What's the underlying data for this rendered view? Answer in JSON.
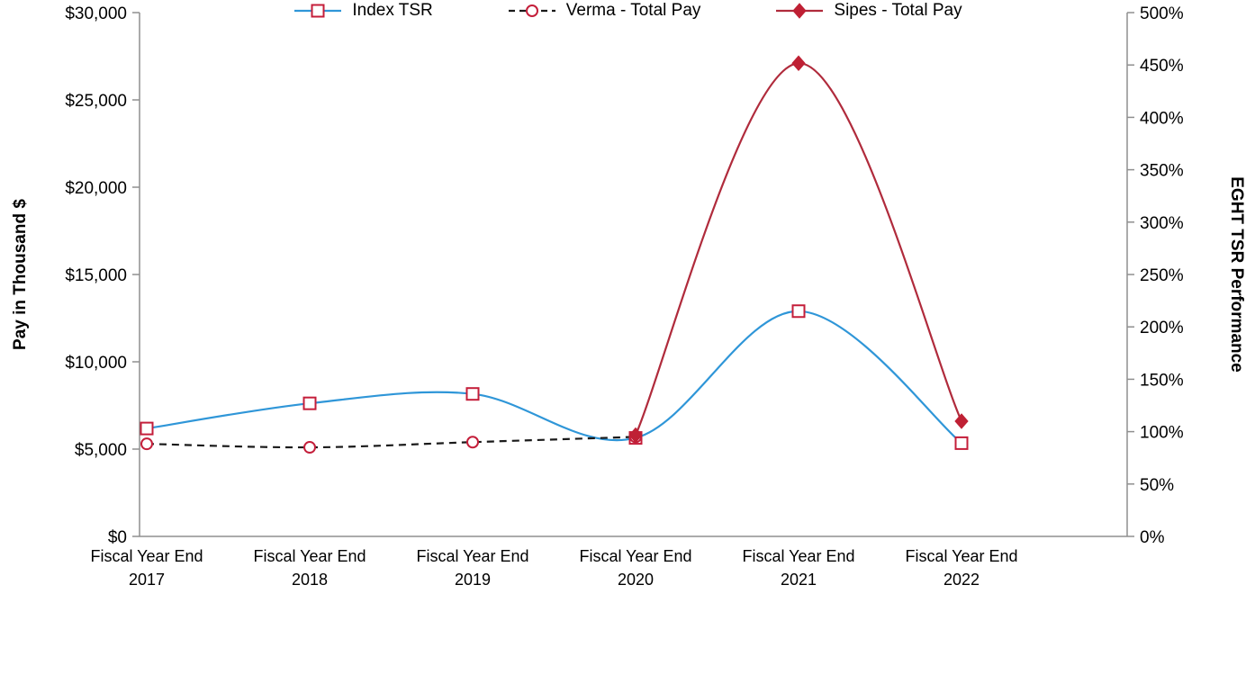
{
  "chart_data": {
    "type": "line",
    "title": "",
    "categories": [
      {
        "label": "Fiscal Year End",
        "year": "2017"
      },
      {
        "label": "Fiscal Year End",
        "year": "2018"
      },
      {
        "label": "Fiscal Year End",
        "year": "2019"
      },
      {
        "label": "Fiscal Year End",
        "year": "2020"
      },
      {
        "label": "Fiscal Year End",
        "year": "2021"
      },
      {
        "label": "Fiscal Year End",
        "year": "2022"
      }
    ],
    "left_axis": {
      "title": "Pay in Thousand $",
      "min": 0,
      "max": 30000,
      "ticks": [
        "$0",
        "$5,000",
        "$10,000",
        "$15,000",
        "$20,000",
        "$25,000",
        "$30,000"
      ]
    },
    "right_axis": {
      "title": "EGHT TSR Performance",
      "min": 0,
      "max": 500,
      "ticks": [
        "0%",
        "50%",
        "100%",
        "150%",
        "200%",
        "250%",
        "300%",
        "350%",
        "400%",
        "450%",
        "500%"
      ]
    },
    "series": [
      {
        "id": "index-tsr",
        "name": "Index TSR",
        "axis": "right",
        "unit": "%",
        "color": "#2f96d8",
        "dash": "",
        "marker": "square-open",
        "marker_color": "#c41e3a",
        "values": [
          103,
          127,
          136,
          94,
          215,
          89
        ]
      },
      {
        "id": "verma-total-pay",
        "name": "Verma - Total Pay",
        "axis": "left",
        "unit": "thousand $",
        "color": "#1a1a1a",
        "dash": "8 6",
        "marker": "circle-open",
        "marker_color": "#c41e3a",
        "values": [
          5300,
          5100,
          5400,
          5700,
          null,
          null
        ]
      },
      {
        "id": "sipes-total-pay",
        "name": "Sipes - Total Pay",
        "axis": "left",
        "unit": "thousand $",
        "color": "#b02b3c",
        "dash": "",
        "marker": "diamond",
        "marker_color": "#bf2034",
        "values": [
          null,
          null,
          null,
          5800,
          27100,
          6600
        ]
      }
    ],
    "style": {
      "axis_color": "#8f8f8f",
      "text_color": "#000000",
      "background": "#ffffff",
      "grid": "off",
      "legend_position": "bottom"
    }
  }
}
